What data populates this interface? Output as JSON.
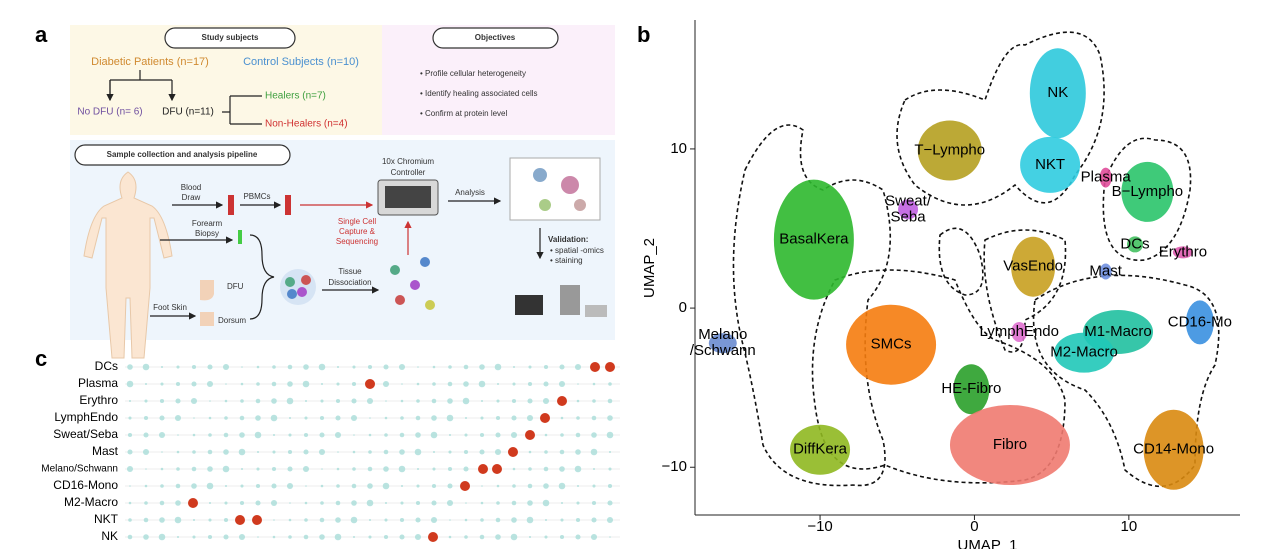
{
  "panels": {
    "a": "a",
    "b": "b",
    "c": "c"
  },
  "study_design": {
    "study_subjects": "Study subjects",
    "objectives_title": "Objectives",
    "diabetic": "Diabetic Patients (n=17)",
    "control": "Control Subjects (n=10)",
    "no_dfu": "No DFU (n= 6)",
    "dfu": "DFU (n=11)",
    "healers": "Healers (n=7)",
    "non_healers": "Non-Healers (n=4)",
    "objectives": [
      "• Profile cellular heterogeneity",
      "• Identify healing associated cells",
      "• Confirm at protein level"
    ],
    "pipeline_title": "Sample collection and analysis pipeline",
    "blood_draw": [
      "Blood",
      "Draw"
    ],
    "pbmcs": "PBMCs",
    "forearm_biopsy": [
      "Forearm",
      "Biopsy"
    ],
    "foot_skin": "Foot Skin",
    "dfu_site": "DFU",
    "dorsum": "Dorsum",
    "controller": [
      "10x Chromium",
      "Controller"
    ],
    "capture": [
      "Single Cell",
      "Capture &",
      "Sequencing"
    ],
    "dissociation": [
      "Tissue",
      "Dissociation"
    ],
    "analysis": "Analysis",
    "validation_title": "Validation:",
    "validation": [
      "• spatial -omics",
      "• staining"
    ]
  },
  "umap": {
    "x_label": "UMAP_1",
    "y_label": "UMAP_2",
    "xlim": [
      -18.1,
      17.2
    ],
    "ylim": [
      -13,
      18.1
    ],
    "xticks": [
      {
        "value": -10,
        "label": "−10"
      },
      0,
      10
    ],
    "yticks": [
      {
        "value": -10,
        "label": "−10"
      },
      0,
      10
    ],
    "clusters": [
      {
        "name": "NK",
        "color": "#2ec9dc",
        "x": 5.4,
        "y": 13.5
      },
      {
        "name": "T−Lympho",
        "color": "#b5a020",
        "x": -1.6,
        "y": 9.9
      },
      {
        "name": "NKT",
        "color": "#30cce0",
        "x": 4.9,
        "y": 9.0
      },
      {
        "name": "Sweat/\nSeba",
        "color": "#c060e0",
        "x": -4.3,
        "y": 6.2
      },
      {
        "name": "BasalKera",
        "color": "#2db82d",
        "x": -10.4,
        "y": 4.3
      },
      {
        "name": "Plasma",
        "color": "#e04c9a",
        "x": 8.5,
        "y": 8.2
      },
      {
        "name": "B−Lympho",
        "color": "#2ac46a",
        "x": 11.2,
        "y": 7.3
      },
      {
        "name": "DCs",
        "color": "#44c060",
        "x": 10.4,
        "y": 4.0
      },
      {
        "name": "Erythro",
        "color": "#e05cb0",
        "x": 13.5,
        "y": 3.5
      },
      {
        "name": "VasEndo",
        "color": "#c8a020",
        "x": 3.8,
        "y": 2.6
      },
      {
        "name": "Mast",
        "color": "#7090e0",
        "x": 8.5,
        "y": 2.3
      },
      {
        "name": "LymphEndo",
        "color": "#e070d0",
        "x": 2.9,
        "y": -1.5
      },
      {
        "name": "Melano\n/Schwann",
        "color": "#6a8cd0",
        "x": -16.3,
        "y": -2.2
      },
      {
        "name": "SMCs",
        "color": "#f57c0e",
        "x": -5.4,
        "y": -2.3
      },
      {
        "name": "M1-Macro",
        "color": "#20c0a0",
        "x": 9.3,
        "y": -1.5
      },
      {
        "name": "M2-Macro",
        "color": "#20c8b8",
        "x": 7.1,
        "y": -2.8
      },
      {
        "name": "CD16-Mo",
        "color": "#3a90e0",
        "x": 14.6,
        "y": -0.9
      },
      {
        "name": "HE-Fibro",
        "color": "#2aa02a",
        "x": -0.2,
        "y": -5.1
      },
      {
        "name": "Fibro",
        "color": "#f07a70",
        "x": 2.3,
        "y": -8.6
      },
      {
        "name": "DiffKera",
        "color": "#8fb820",
        "x": -10.0,
        "y": -8.9
      },
      {
        "name": "CD14-Mono",
        "color": "#d98a10",
        "x": 12.9,
        "y": -8.9
      }
    ]
  },
  "dotplot": {
    "rows": [
      "DCs",
      "Plasma",
      "Erythro",
      "LymphEndo",
      "Sweat/Seba",
      "Mast",
      "Melano/Schwann",
      "CD16-Mono",
      "M2-Macro",
      "NKT",
      "NK"
    ]
  }
}
